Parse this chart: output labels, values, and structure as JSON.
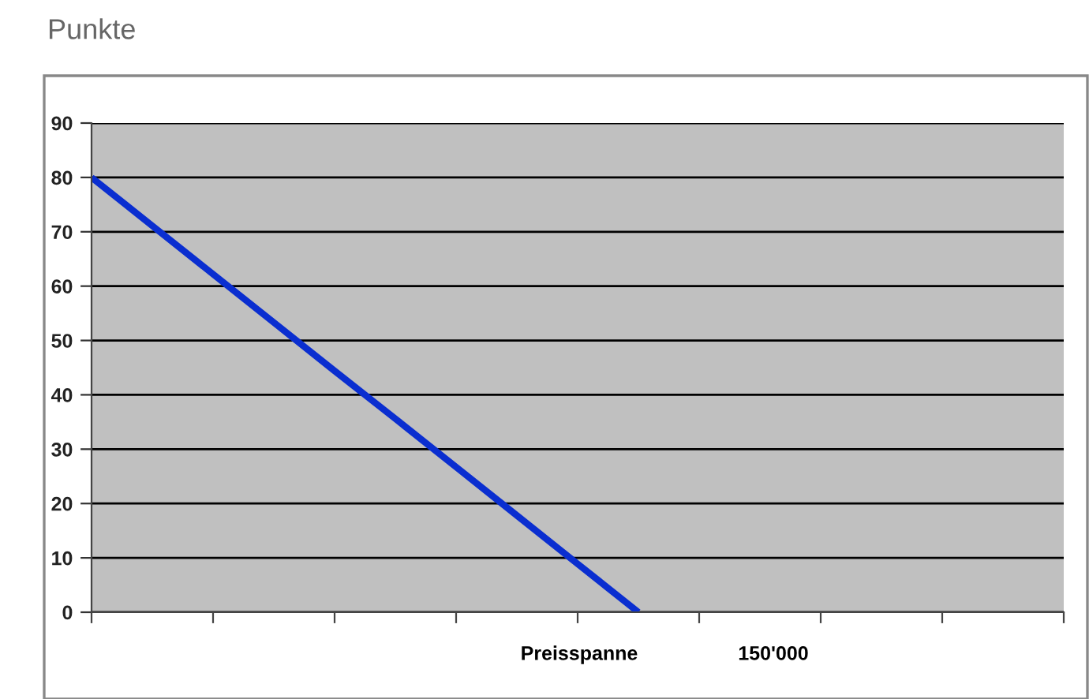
{
  "chart_data": {
    "type": "line",
    "title": "Punkte",
    "xlabel": "Preisspanne",
    "annotations": [
      "150'000"
    ],
    "categories": [
      null,
      null,
      null,
      null,
      null,
      null,
      null,
      null,
      null,
      null,
      null,
      null,
      null,
      null,
      null,
      null,
      null
    ],
    "series": [
      {
        "color": "#0a2ed0",
        "values": [
          80,
          71.1,
          62.2,
          53.3,
          44.4,
          35.6,
          26.7,
          17.8,
          8.9,
          0,
          null,
          null,
          null,
          null,
          null,
          null,
          null
        ]
      }
    ],
    "ylim": [
      0,
      90
    ],
    "yticks": [
      0,
      10,
      20,
      30,
      40,
      50,
      60,
      70,
      80,
      90
    ],
    "grid": "y",
    "legend": false
  }
}
